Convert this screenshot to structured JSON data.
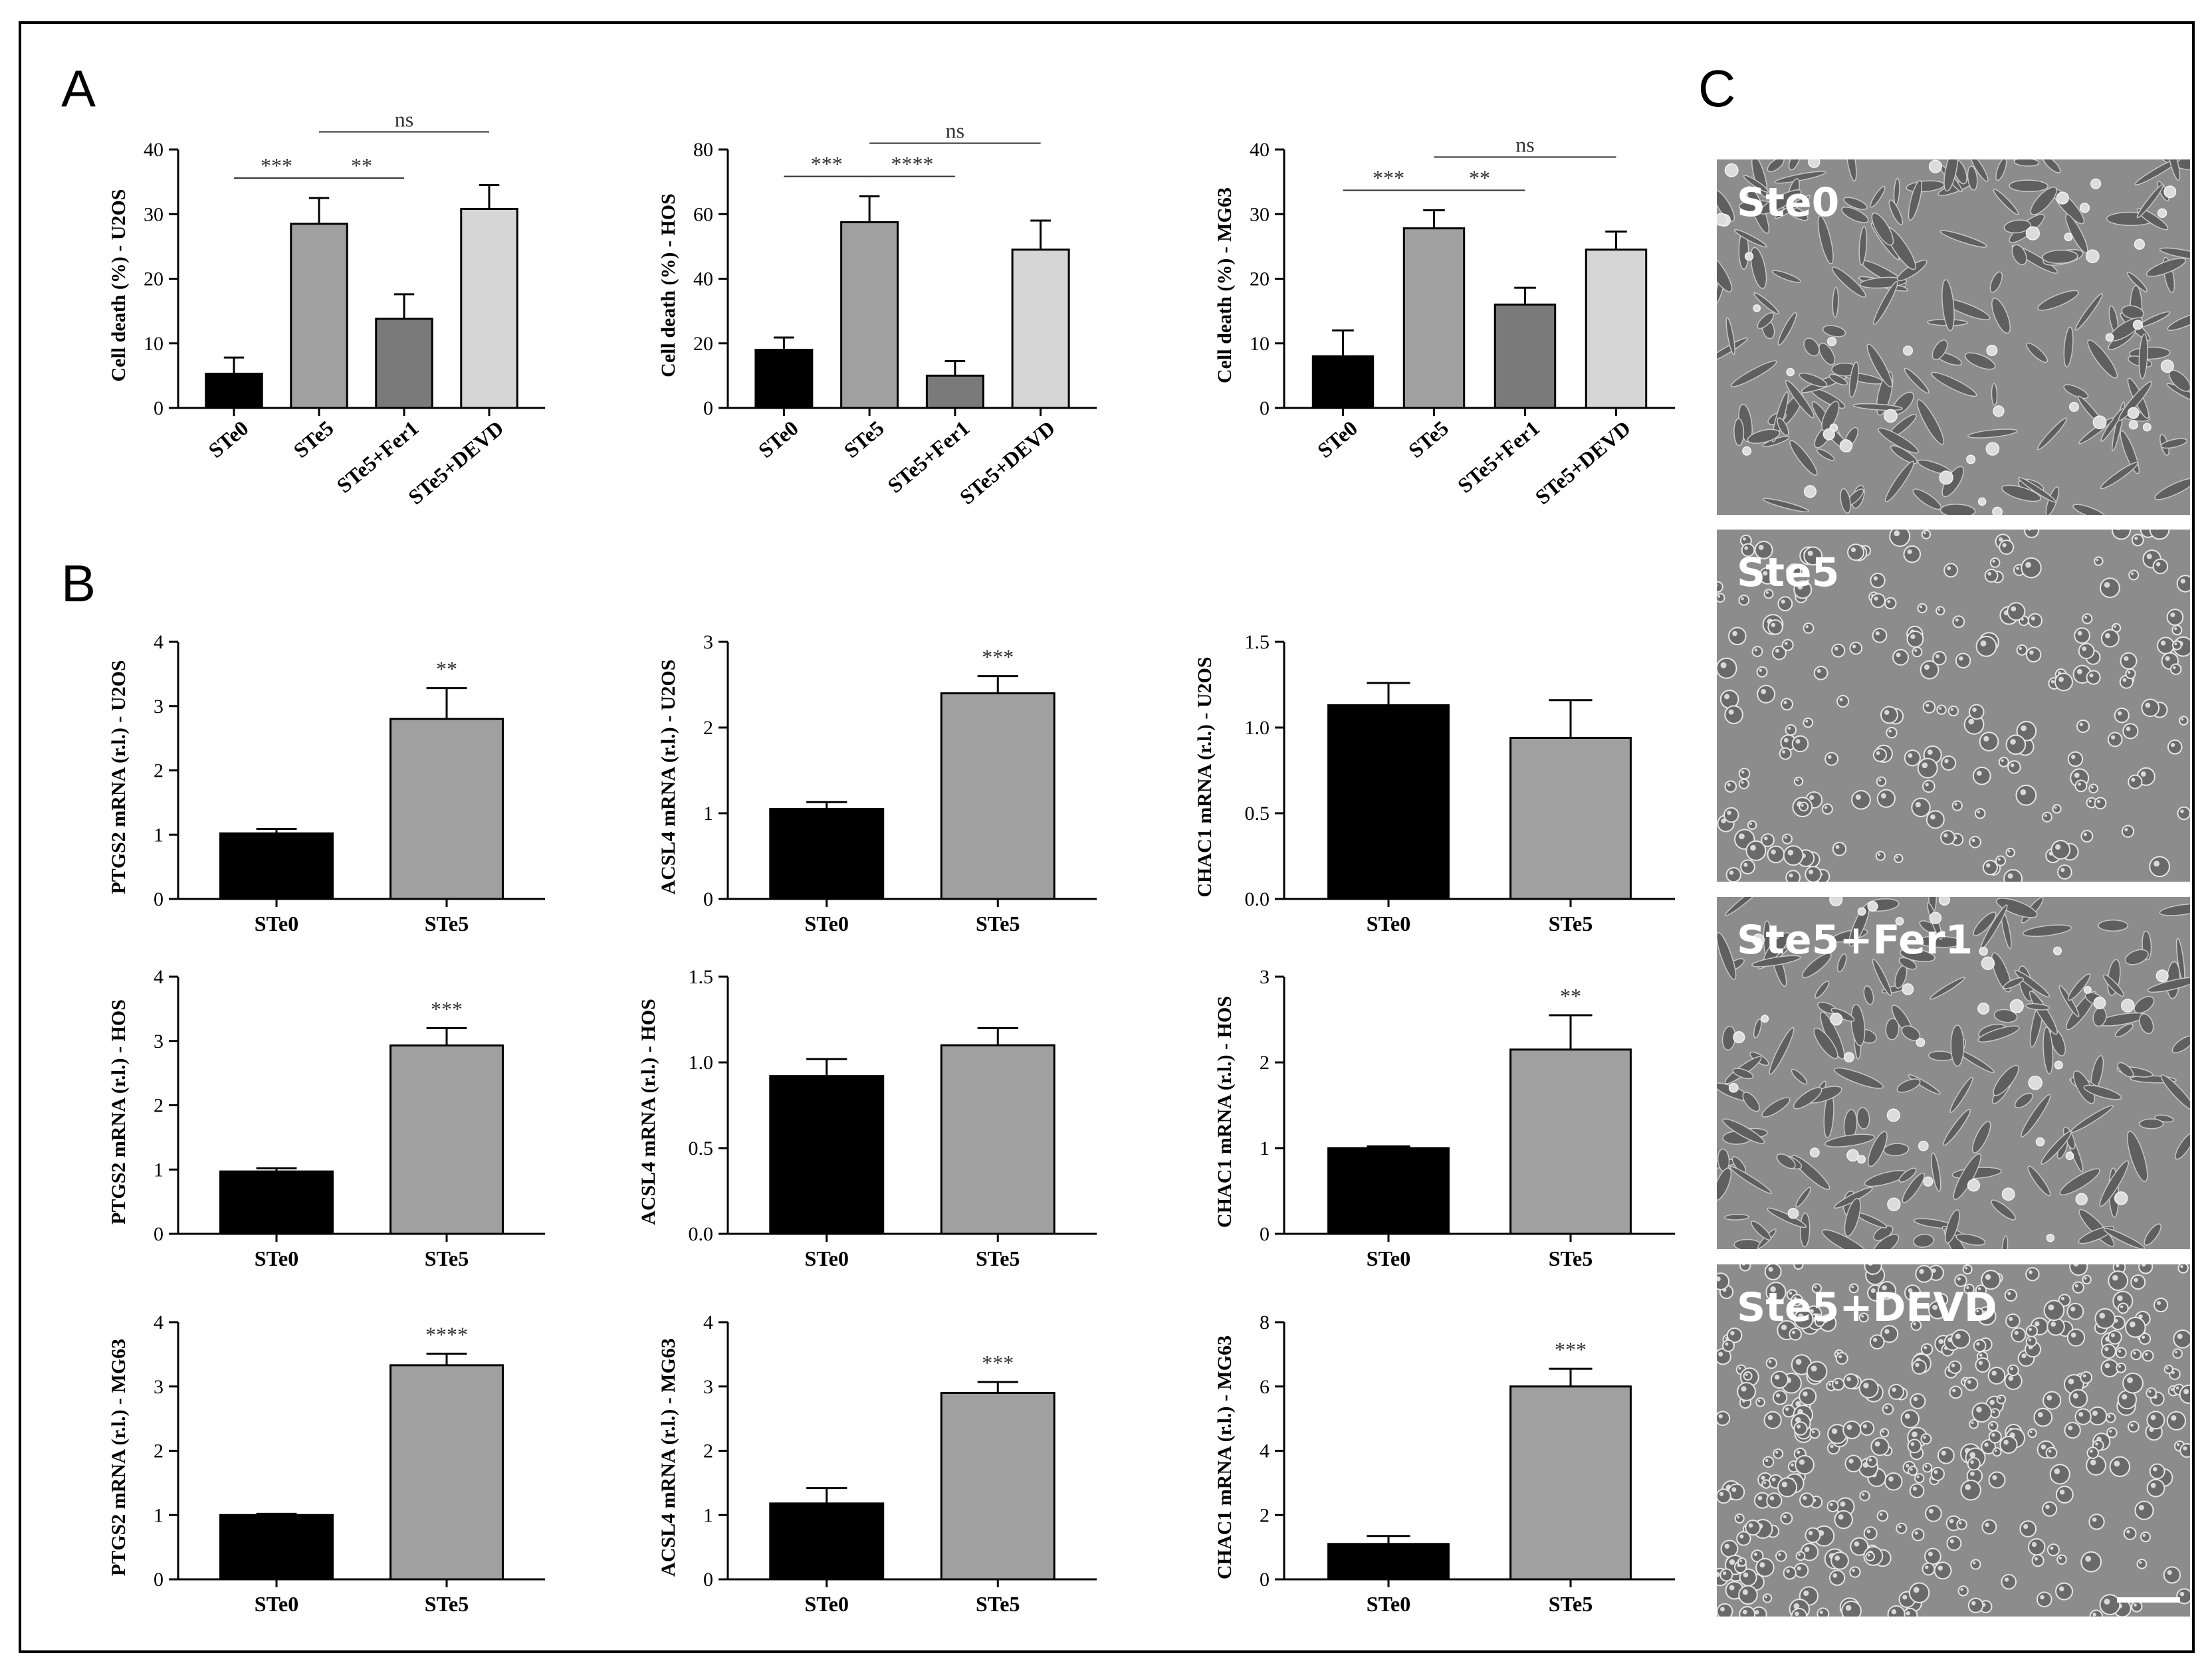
{
  "panel_labels": [
    "A",
    "B",
    "C"
  ],
  "colors": {
    "STe0": "#000000",
    "STe5": "#a0a0a0",
    "STe5+Fer1": "#7a7a7a",
    "STe5+DEVD": "#d6d6d6"
  },
  "chart_data": [
    {
      "panel": "A",
      "type": "bar",
      "ylabel": "Cell death (%) - U2OS",
      "categories": [
        "STe0",
        "STe5",
        "STe5+Fer1",
        "STe5+DEVD"
      ],
      "values": [
        5.3,
        28.5,
        13.8,
        30.8
      ],
      "errors": [
        2.5,
        4.0,
        3.8,
        3.7
      ],
      "ylim": [
        0,
        40
      ],
      "yticks": [
        "0",
        "10",
        "20",
        "30",
        "40"
      ],
      "comparisons": [
        {
          "from": 0,
          "to": 1,
          "label": "***"
        },
        {
          "from": 1,
          "to": 2,
          "label": "**"
        },
        {
          "from": 1,
          "to": 3,
          "label": "ns"
        }
      ]
    },
    {
      "panel": "A",
      "type": "bar",
      "ylabel": "Cell death (%) - HOS",
      "categories": [
        "STe0",
        "STe5",
        "STe5+Fer1",
        "STe5+DEVD"
      ],
      "values": [
        18.0,
        57.5,
        10.0,
        49.0
      ],
      "errors": [
        3.8,
        8.0,
        4.5,
        9.0
      ],
      "ylim": [
        0,
        80
      ],
      "yticks": [
        "0",
        "20",
        "40",
        "60",
        "80"
      ],
      "comparisons": [
        {
          "from": 0,
          "to": 1,
          "label": "***"
        },
        {
          "from": 1,
          "to": 2,
          "label": "****"
        },
        {
          "from": 1,
          "to": 3,
          "label": "ns"
        }
      ]
    },
    {
      "panel": "A",
      "type": "bar",
      "ylabel": "Cell death (%) - MG63",
      "categories": [
        "STe0",
        "STe5",
        "STe5+Fer1",
        "STe5+DEVD"
      ],
      "values": [
        8.0,
        27.8,
        16.0,
        24.5
      ],
      "errors": [
        4.0,
        2.8,
        2.6,
        2.8
      ],
      "ylim": [
        0,
        40
      ],
      "yticks": [
        "0",
        "10",
        "20",
        "30",
        "40"
      ],
      "comparisons": [
        {
          "from": 0,
          "to": 1,
          "label": "***"
        },
        {
          "from": 1,
          "to": 2,
          "label": "**"
        },
        {
          "from": 1,
          "to": 3,
          "label": "ns"
        }
      ]
    },
    {
      "panel": "B",
      "type": "bar",
      "ylabel": "PTGS2 mRNA (r.l.) - U2OS",
      "categories": [
        "STe0",
        "STe5"
      ],
      "values": [
        1.02,
        2.8
      ],
      "errors": [
        0.07,
        0.48
      ],
      "ylim": [
        0,
        4
      ],
      "yticks": [
        "0",
        "1",
        "2",
        "3",
        "4"
      ],
      "significance": "**"
    },
    {
      "panel": "B",
      "type": "bar",
      "ylabel": "ACSL4 mRNA (r.l.) - U2OS",
      "categories": [
        "STe0",
        "STe5"
      ],
      "values": [
        1.05,
        2.4
      ],
      "errors": [
        0.08,
        0.2
      ],
      "ylim": [
        0,
        3
      ],
      "yticks": [
        "0",
        "1",
        "2",
        "3"
      ],
      "significance": "***"
    },
    {
      "panel": "B",
      "type": "bar",
      "ylabel": "CHAC1 mRNA (r.l.) - U2OS",
      "categories": [
        "STe0",
        "STe5"
      ],
      "values": [
        1.13,
        0.94
      ],
      "errors": [
        0.13,
        0.22
      ],
      "ylim": [
        0,
        1.5
      ],
      "yticks": [
        "0.0",
        "0.5",
        "1.0",
        "1.5"
      ],
      "significance": ""
    },
    {
      "panel": "B",
      "type": "bar",
      "ylabel": "PTGS2 mRNA (r.l.) - HOS",
      "categories": [
        "STe0",
        "STe5"
      ],
      "values": [
        0.97,
        2.93
      ],
      "errors": [
        0.05,
        0.27
      ],
      "ylim": [
        0,
        4
      ],
      "yticks": [
        "0",
        "1",
        "2",
        "3",
        "4"
      ],
      "significance": "***"
    },
    {
      "panel": "B",
      "type": "bar",
      "ylabel": "ACSL4 mRNA (r.l.) - HOS",
      "categories": [
        "STe0",
        "STe5"
      ],
      "values": [
        0.92,
        1.1
      ],
      "errors": [
        0.1,
        0.1
      ],
      "ylim": [
        0,
        1.5
      ],
      "yticks": [
        "0.0",
        "0.5",
        "1.0",
        "1.5"
      ],
      "significance": ""
    },
    {
      "panel": "B",
      "type": "bar",
      "ylabel": "CHAC1 mRNA (r.l.) - HOS",
      "categories": [
        "STe0",
        "STe5"
      ],
      "values": [
        1.0,
        2.15
      ],
      "errors": [
        0.02,
        0.4
      ],
      "ylim": [
        0,
        3
      ],
      "yticks": [
        "0",
        "1",
        "2",
        "3"
      ],
      "significance": "**"
    },
    {
      "panel": "B",
      "type": "bar",
      "ylabel": "PTGS2 mRNA (r.l.) - MG63",
      "categories": [
        "STe0",
        "STe5"
      ],
      "values": [
        1.0,
        3.33
      ],
      "errors": [
        0.02,
        0.18
      ],
      "ylim": [
        0,
        4
      ],
      "yticks": [
        "0",
        "1",
        "2",
        "3",
        "4"
      ],
      "significance": "****"
    },
    {
      "panel": "B",
      "type": "bar",
      "ylabel": "ACSL4 mRNA (r.l.) - MG63",
      "categories": [
        "STe0",
        "STe5"
      ],
      "values": [
        1.18,
        2.9
      ],
      "errors": [
        0.24,
        0.17
      ],
      "ylim": [
        0,
        4
      ],
      "yticks": [
        "0",
        "1",
        "2",
        "3",
        "4"
      ],
      "significance": "***"
    },
    {
      "panel": "B",
      "type": "bar",
      "ylabel": "CHAC1 mRNA (r.l.) - MG63",
      "categories": [
        "STe0",
        "STe5"
      ],
      "values": [
        1.1,
        6.0
      ],
      "errors": [
        0.25,
        0.55
      ],
      "ylim": [
        0,
        8
      ],
      "yticks": [
        "0",
        "2",
        "4",
        "6",
        "8"
      ],
      "significance": "***"
    }
  ],
  "micrographs": [
    {
      "label": "Ste0",
      "style": "spread"
    },
    {
      "label": "Ste5",
      "style": "rounded"
    },
    {
      "label": "Ste5+Fer1",
      "style": "spread"
    },
    {
      "label": "Ste5+DEVD",
      "style": "dense"
    }
  ]
}
